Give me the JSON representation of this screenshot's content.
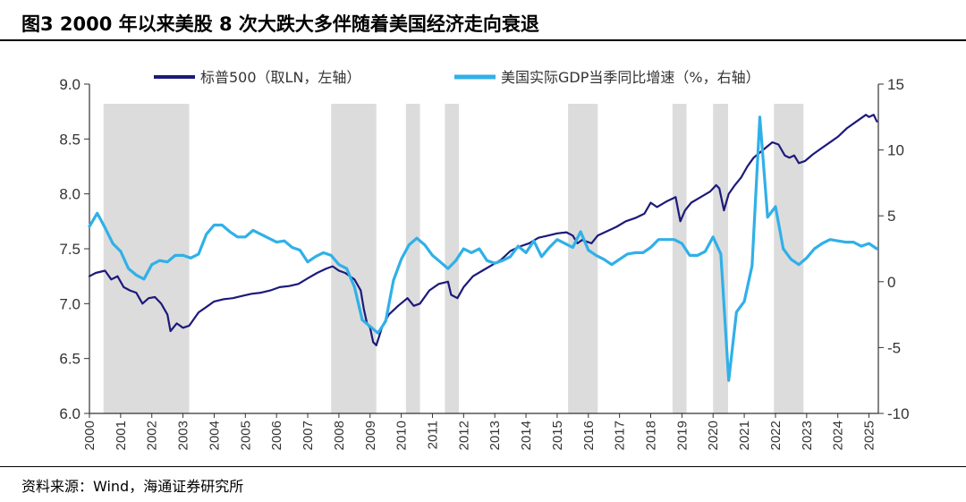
{
  "figure": {
    "title": "图3  2000 年以来美股 8 次大跌大多伴随着美国经济走向衰退",
    "source": "资料来源：Wind，海通证券研究所"
  },
  "chart_data": {
    "type": "line",
    "x_range": [
      2000,
      2025.3
    ],
    "x_ticks": [
      "2000",
      "2001",
      "2002",
      "2003",
      "2004",
      "2005",
      "2006",
      "2007",
      "2008",
      "2009",
      "2010",
      "2011",
      "2012",
      "2013",
      "2014",
      "2015",
      "2016",
      "2017",
      "2018",
      "2019",
      "2020",
      "2021",
      "2022",
      "2023",
      "2024",
      "2025"
    ],
    "y_left": {
      "range": [
        6.0,
        9.0
      ],
      "ticks": [
        "6.0",
        "6.5",
        "7.0",
        "7.5",
        "8.0",
        "8.5",
        "9.0"
      ]
    },
    "y_right": {
      "range": [
        -10,
        15
      ],
      "ticks": [
        "-10",
        "-5",
        "0",
        "5",
        "10",
        "15"
      ]
    },
    "grid": false,
    "legend_position": "top",
    "shaded_periods": [
      [
        2000.45,
        2003.2
      ],
      [
        2007.75,
        2009.2
      ],
      [
        2010.15,
        2010.6
      ],
      [
        2011.4,
        2011.85
      ],
      [
        2015.35,
        2016.3
      ],
      [
        2018.7,
        2019.15
      ],
      [
        2020.0,
        2020.48
      ],
      [
        2021.95,
        2022.9
      ]
    ],
    "series": [
      {
        "name": "标普500（取LN，左轴）",
        "axis": "left",
        "color": "#1c1a7a",
        "x": [
          2000.0,
          2000.2,
          2000.5,
          2000.7,
          2000.9,
          2001.1,
          2001.3,
          2001.5,
          2001.7,
          2001.9,
          2002.1,
          2002.3,
          2002.5,
          2002.6,
          2002.8,
          2003.0,
          2003.2,
          2003.5,
          2003.8,
          2004.0,
          2004.3,
          2004.6,
          2004.9,
          2005.2,
          2005.5,
          2005.8,
          2006.1,
          2006.4,
          2006.7,
          2007.0,
          2007.3,
          2007.6,
          2007.8,
          2008.0,
          2008.2,
          2008.5,
          2008.7,
          2008.8,
          2008.9,
          2009.0,
          2009.1,
          2009.2,
          2009.4,
          2009.6,
          2009.9,
          2010.2,
          2010.4,
          2010.6,
          2010.9,
          2011.2,
          2011.5,
          2011.6,
          2011.8,
          2012.0,
          2012.3,
          2012.6,
          2012.9,
          2013.2,
          2013.5,
          2013.8,
          2014.1,
          2014.4,
          2014.7,
          2015.0,
          2015.3,
          2015.5,
          2015.65,
          2015.8,
          2016.1,
          2016.3,
          2016.6,
          2016.9,
          2017.2,
          2017.5,
          2017.8,
          2018.0,
          2018.2,
          2018.5,
          2018.8,
          2018.95,
          2019.1,
          2019.3,
          2019.6,
          2019.9,
          2020.1,
          2020.2,
          2020.35,
          2020.5,
          2020.7,
          2020.9,
          2021.1,
          2021.3,
          2021.6,
          2021.9,
          2022.1,
          2022.3,
          2022.45,
          2022.6,
          2022.75,
          2022.95,
          2023.2,
          2023.5,
          2023.8,
          2024.0,
          2024.3,
          2024.6,
          2024.9,
          2025.0,
          2025.15,
          2025.25
        ],
        "y": [
          7.25,
          7.28,
          7.3,
          7.22,
          7.25,
          7.15,
          7.12,
          7.1,
          7.0,
          7.05,
          7.06,
          7.0,
          6.9,
          6.75,
          6.82,
          6.78,
          6.8,
          6.92,
          6.98,
          7.02,
          7.04,
          7.05,
          7.07,
          7.09,
          7.1,
          7.12,
          7.15,
          7.16,
          7.18,
          7.23,
          7.28,
          7.32,
          7.34,
          7.3,
          7.28,
          7.22,
          7.12,
          6.95,
          6.82,
          6.78,
          6.65,
          6.62,
          6.8,
          6.9,
          6.98,
          7.05,
          6.98,
          7.0,
          7.12,
          7.18,
          7.2,
          7.08,
          7.05,
          7.15,
          7.25,
          7.3,
          7.35,
          7.4,
          7.48,
          7.52,
          7.55,
          7.6,
          7.62,
          7.64,
          7.65,
          7.62,
          7.55,
          7.58,
          7.55,
          7.62,
          7.66,
          7.7,
          7.75,
          7.78,
          7.82,
          7.92,
          7.88,
          7.93,
          7.97,
          7.75,
          7.85,
          7.92,
          7.97,
          8.02,
          8.08,
          8.05,
          7.85,
          8.0,
          8.08,
          8.15,
          8.25,
          8.33,
          8.4,
          8.47,
          8.45,
          8.35,
          8.33,
          8.35,
          8.28,
          8.3,
          8.36,
          8.42,
          8.48,
          8.52,
          8.6,
          8.66,
          8.72,
          8.7,
          8.72,
          8.66
        ]
      },
      {
        "name": "美国实际GDP当季同比增速（%，右轴）",
        "axis": "right",
        "color": "#30b0e8",
        "x": [
          2000.0,
          2000.25,
          2000.5,
          2000.75,
          2001.0,
          2001.25,
          2001.5,
          2001.75,
          2002.0,
          2002.25,
          2002.5,
          2002.75,
          2003.0,
          2003.25,
          2003.5,
          2003.75,
          2004.0,
          2004.25,
          2004.5,
          2004.75,
          2005.0,
          2005.25,
          2005.5,
          2005.75,
          2006.0,
          2006.25,
          2006.5,
          2006.75,
          2007.0,
          2007.25,
          2007.5,
          2007.75,
          2008.0,
          2008.25,
          2008.5,
          2008.75,
          2009.0,
          2009.25,
          2009.5,
          2009.75,
          2010.0,
          2010.25,
          2010.5,
          2010.75,
          2011.0,
          2011.25,
          2011.5,
          2011.75,
          2012.0,
          2012.25,
          2012.5,
          2012.75,
          2013.0,
          2013.25,
          2013.5,
          2013.75,
          2014.0,
          2014.25,
          2014.5,
          2014.75,
          2015.0,
          2015.25,
          2015.5,
          2015.75,
          2016.0,
          2016.25,
          2016.5,
          2016.75,
          2017.0,
          2017.25,
          2017.5,
          2017.75,
          2018.0,
          2018.25,
          2018.5,
          2018.75,
          2019.0,
          2019.25,
          2019.5,
          2019.75,
          2020.0,
          2020.25,
          2020.5,
          2020.75,
          2021.0,
          2021.25,
          2021.5,
          2021.75,
          2022.0,
          2022.25,
          2022.5,
          2022.75,
          2023.0,
          2023.25,
          2023.5,
          2023.75,
          2024.0,
          2024.25,
          2024.5,
          2024.75,
          2025.0,
          2025.25
        ],
        "y": [
          4.2,
          5.2,
          4.1,
          2.9,
          2.3,
          1.0,
          0.5,
          0.2,
          1.3,
          1.6,
          1.5,
          2.0,
          2.0,
          1.8,
          2.1,
          3.6,
          4.3,
          4.3,
          3.8,
          3.4,
          3.4,
          3.9,
          3.6,
          3.3,
          3.0,
          3.1,
          2.6,
          2.4,
          1.5,
          1.9,
          2.2,
          2.0,
          1.3,
          1.0,
          -0.4,
          -2.9,
          -3.4,
          -3.9,
          -3.0,
          0.1,
          1.7,
          2.8,
          3.3,
          2.8,
          2.0,
          1.5,
          1.0,
          1.6,
          2.5,
          2.2,
          2.5,
          1.6,
          1.4,
          1.6,
          1.9,
          2.7,
          2.2,
          3.1,
          1.9,
          2.6,
          3.2,
          2.9,
          2.6,
          3.8,
          2.4,
          2.0,
          1.7,
          1.3,
          1.7,
          2.1,
          2.2,
          2.2,
          2.6,
          3.2,
          3.2,
          3.2,
          2.9,
          2.0,
          2.0,
          2.3,
          3.4,
          2.1,
          -7.5,
          -2.3,
          -1.5,
          1.2,
          12.5,
          4.9,
          5.7,
          2.5,
          1.7,
          1.3,
          1.8,
          2.5,
          2.9,
          3.2,
          3.1,
          3.0,
          3.0,
          2.7,
          2.9,
          2.5
        ]
      }
    ]
  }
}
